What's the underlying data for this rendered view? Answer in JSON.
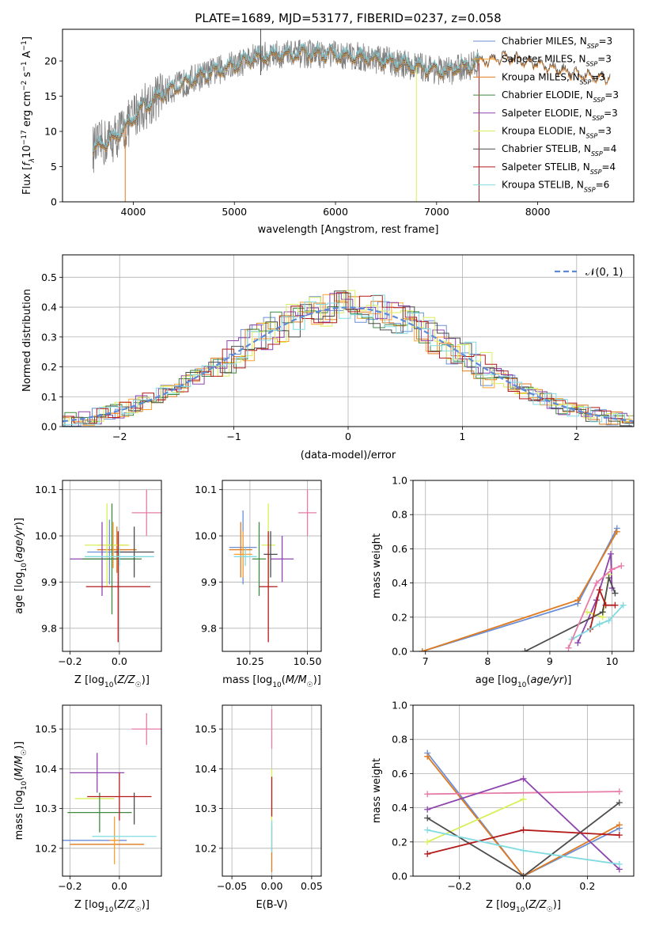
{
  "title": "PLATE=1689, MJD=53177, FIBERID=0237, z=0.058",
  "colors": {
    "Chabrier MILES": "#6a8fd6",
    "Salpeter MILES": "#ff9f2e",
    "Kroupa MILES": "#e07a1f",
    "Chabrier ELODIE": "#3f8a3f",
    "Salpeter ELODIE": "#8e44ad",
    "Kroupa ELODIE": "#d9ef5a",
    "Chabrier STELIB": "#4d4d4d",
    "Salpeter STELIB": "#b31b1b",
    "Kroupa STELIB": "#7fdbe0",
    "Extra": "#e77ca8"
  },
  "chart_data": [
    {
      "id": "spectrum",
      "type": "line",
      "xlabel": "wavelength [Angstrom, rest frame]",
      "ylabel": "Flux [fλ10⁻¹⁷ erg cm⁻² s⁻¹ A⁻¹]",
      "xlim": [
        3300,
        8950
      ],
      "ylim": [
        0,
        24.5
      ],
      "xticks": [
        4000,
        5000,
        6000,
        7000,
        8000
      ],
      "yticks": [
        0,
        5,
        10,
        15,
        20
      ],
      "legend_placement": "top-right",
      "legend": [
        {
          "name": "Chabrier MILES",
          "sup": "3"
        },
        {
          "name": "Salpeter MILES",
          "sup": "3"
        },
        {
          "name": "Kroupa MILES",
          "sup": "3"
        },
        {
          "name": "Chabrier ELODIE",
          "sup": "3"
        },
        {
          "name": "Salpeter ELODIE",
          "sup": "3"
        },
        {
          "name": "Kroupa ELODIE",
          "sup": "3"
        },
        {
          "name": "Chabrier STELIB",
          "sup": "4"
        },
        {
          "name": "Salpeter STELIB",
          "sup": "4"
        },
        {
          "name": "Kroupa STELIB",
          "sup": "6"
        }
      ],
      "legend_prefix": ", N",
      "legend_sub": "SSP",
      "continuum": [
        [
          3600,
          7.5
        ],
        [
          3800,
          9
        ],
        [
          3950,
          11
        ],
        [
          4050,
          13
        ],
        [
          4300,
          15.5
        ],
        [
          4600,
          17.5
        ],
        [
          4900,
          19
        ],
        [
          5200,
          20.5
        ],
        [
          5500,
          21
        ],
        [
          5900,
          21
        ],
        [
          6300,
          20.5
        ],
        [
          6700,
          19.5
        ],
        [
          7100,
          18.5
        ],
        [
          7500,
          20
        ],
        [
          7700,
          20.5
        ],
        [
          8000,
          19.5
        ],
        [
          8400,
          18
        ],
        [
          8700,
          17.5
        ]
      ]
    },
    {
      "id": "residuals",
      "type": "histogram",
      "xlabel": "(data-model)/error",
      "ylabel": "Normed distribution",
      "xlim": [
        -2.5,
        2.5
      ],
      "ylim": [
        0,
        0.575
      ],
      "xticks": [
        -2,
        -1,
        0,
        1,
        2
      ],
      "yticks": [
        0.0,
        0.1,
        0.2,
        0.3,
        0.4,
        0.5
      ],
      "grid": true,
      "legend_placement": "top-right",
      "reference_label": "𝒩(0, 1)",
      "reference_color": "#5b8ad6"
    },
    {
      "id": "age-vs-Z",
      "type": "errorbar",
      "xlabel": "Z [log10(Z/Z☉)]",
      "ylabel": "age  [log10(age/yr)]",
      "xlim": [
        -0.23,
        0.17
      ],
      "ylim": [
        9.75,
        10.12
      ],
      "xticks": [
        -0.2,
        0.0
      ],
      "yticks": [
        9.8,
        9.9,
        10.0,
        10.1
      ],
      "grid": true,
      "points": [
        {
          "series": "Chabrier MILES",
          "x": -0.04,
          "xe": 0.09,
          "y": 9.965,
          "ye": 0.07
        },
        {
          "series": "Kroupa MILES",
          "x": -0.01,
          "xe": 0.08,
          "y": 9.97,
          "ye": 0.05
        },
        {
          "series": "Salpeter MILES",
          "x": -0.025,
          "xe": 0.06,
          "y": 9.98,
          "ye": 0.05
        },
        {
          "series": "Kroupa ELODIE",
          "x": -0.05,
          "xe": 0.09,
          "y": 9.98,
          "ye": 0.09
        },
        {
          "series": "Salpeter ELODIE",
          "x": -0.07,
          "xe": 0.13,
          "y": 9.95,
          "ye": 0.08
        },
        {
          "series": "Chabrier ELODIE",
          "x": -0.03,
          "xe": 0.12,
          "y": 9.95,
          "ye": 0.12
        },
        {
          "series": "Chabrier STELIB",
          "x": 0.06,
          "xe": 0.08,
          "y": 9.965,
          "ye": 0.055
        },
        {
          "series": "Salpeter STELIB",
          "x": -0.005,
          "xe": 0.13,
          "y": 9.89,
          "ye": 0.12
        },
        {
          "series": "Kroupa STELIB",
          "x": 0.0,
          "xe": 0.14,
          "y": 9.955,
          "ye": 0.02
        },
        {
          "series": "Extra",
          "x": 0.11,
          "xe": 0.06,
          "y": 10.05,
          "ye": 0.05
        }
      ]
    },
    {
      "id": "age-vs-mass",
      "type": "errorbar",
      "xlabel": "mass [log10(M/M☉)]",
      "xlim": [
        10.13,
        10.56
      ],
      "ylim": [
        9.75,
        10.12
      ],
      "xticks": [
        10.25,
        10.5
      ],
      "yticks": [
        9.8,
        9.9,
        10.0,
        10.1
      ],
      "grid": true,
      "points": [
        {
          "series": "Chabrier MILES",
          "x": 10.22,
          "xe": 0.06,
          "y": 9.975,
          "ye": 0.08
        },
        {
          "series": "Kroupa MILES",
          "x": 10.21,
          "xe": 0.05,
          "y": 9.97,
          "ye": 0.06
        },
        {
          "series": "Salpeter MILES",
          "x": 10.22,
          "xe": 0.04,
          "y": 9.96,
          "ye": 0.05
        },
        {
          "series": "Kroupa ELODIE",
          "x": 10.33,
          "xe": 0.03,
          "y": 9.98,
          "ye": 0.09
        },
        {
          "series": "Salpeter ELODIE",
          "x": 10.39,
          "xe": 0.05,
          "y": 9.95,
          "ye": 0.05
        },
        {
          "series": "Chabrier ELODIE",
          "x": 10.29,
          "xe": 0.03,
          "y": 9.95,
          "ye": 0.08
        },
        {
          "series": "Chabrier STELIB",
          "x": 10.34,
          "xe": 0.03,
          "y": 9.96,
          "ye": 0.05
        },
        {
          "series": "Salpeter STELIB",
          "x": 10.33,
          "xe": 0.04,
          "y": 9.89,
          "ye": 0.12
        },
        {
          "series": "Kroupa STELIB",
          "x": 10.23,
          "xe": 0.05,
          "y": 9.955,
          "ye": 0.02
        },
        {
          "series": "Extra",
          "x": 10.5,
          "xe": 0.04,
          "y": 10.05,
          "ye": 0.05
        }
      ]
    },
    {
      "id": "weight-vs-age",
      "type": "line",
      "xlabel": "age  [log10(age/yr)]",
      "ylabel": "mass weight",
      "xlim": [
        6.8,
        10.35
      ],
      "ylim": [
        0.0,
        1.0
      ],
      "xticks": [
        7,
        8,
        9,
        10
      ],
      "yticks": [
        0.0,
        0.2,
        0.4,
        0.6,
        0.8,
        1.0
      ],
      "grid": true,
      "series": [
        {
          "name": "Chabrier MILES",
          "x": [
            6.95,
            9.45,
            10.08
          ],
          "y": [
            0.0,
            0.28,
            0.72
          ]
        },
        {
          "name": "Kroupa MILES",
          "x": [
            6.95,
            9.45,
            10.08
          ],
          "y": [
            0.0,
            0.3,
            0.7
          ]
        },
        {
          "name": "Salpeter ELODIE",
          "x": [
            9.45,
            9.75,
            9.98,
            10.0
          ],
          "y": [
            0.05,
            0.3,
            0.57,
            0.37
          ]
        },
        {
          "name": "Kroupa ELODIE",
          "x": [
            9.6,
            9.85,
            9.95
          ],
          "y": [
            0.23,
            0.2,
            0.45
          ]
        },
        {
          "name": "Chabrier STELIB",
          "x": [
            8.6,
            9.85,
            9.95,
            10.05
          ],
          "y": [
            0.0,
            0.23,
            0.43,
            0.34
          ]
        },
        {
          "name": "Salpeter STELIB",
          "x": [
            9.65,
            9.8,
            9.9,
            10.05
          ],
          "y": [
            0.13,
            0.36,
            0.27,
            0.27
          ]
        },
        {
          "name": "Kroupa STELIB",
          "x": [
            9.35,
            9.8,
            9.95,
            10.18
          ],
          "y": [
            0.07,
            0.16,
            0.18,
            0.27
          ]
        },
        {
          "name": "Extra",
          "x": [
            9.3,
            9.75,
            10.0,
            10.15
          ],
          "y": [
            0.02,
            0.4,
            0.48,
            0.5
          ]
        }
      ]
    },
    {
      "id": "mass-vs-Z",
      "type": "errorbar",
      "xlabel": "Z [log10(Z/Z☉)]",
      "ylabel": "mass [log10(M/M☉)]",
      "xlim": [
        -0.23,
        0.17
      ],
      "ylim": [
        10.13,
        10.56
      ],
      "xticks": [
        -0.2,
        0.0
      ],
      "yticks": [
        10.2,
        10.3,
        10.4,
        10.5
      ],
      "grid": true,
      "points": [
        {
          "series": "Chabrier MILES",
          "x": -0.1,
          "xe": 0.13,
          "y": 10.22,
          "ye": 0.0
        },
        {
          "series": "Kroupa MILES",
          "x": -0.05,
          "xe": 0.15,
          "y": 10.21,
          "ye": 0.0
        },
        {
          "series": "Salpeter MILES",
          "x": -0.02,
          "xe": 0.02,
          "y": 10.22,
          "ye": 0.06
        },
        {
          "series": "Kroupa ELODIE",
          "x": -0.1,
          "xe": 0.08,
          "y": 10.325,
          "ye": 0.0
        },
        {
          "series": "Salpeter ELODIE",
          "x": -0.09,
          "xe": 0.11,
          "y": 10.39,
          "ye": 0.05
        },
        {
          "series": "Chabrier ELODIE",
          "x": -0.08,
          "xe": 0.13,
          "y": 10.29,
          "ye": 0.05
        },
        {
          "series": "Chabrier STELIB",
          "x": 0.06,
          "xe": 0.0,
          "y": 10.3,
          "ye": 0.04
        },
        {
          "series": "Salpeter STELIB",
          "x": 0.0,
          "xe": 0.13,
          "y": 10.33,
          "ye": 0.06
        },
        {
          "series": "Kroupa STELIB",
          "x": 0.02,
          "xe": 0.13,
          "y": 10.23,
          "ye": 0.0
        },
        {
          "series": "Extra",
          "x": 0.11,
          "xe": 0.06,
          "y": 10.5,
          "ye": 0.04
        }
      ]
    },
    {
      "id": "mass-vs-EBV",
      "type": "errorbar",
      "xlabel": "E(B-V)",
      "xlim": [
        -0.062,
        0.062
      ],
      "ylim": [
        10.13,
        10.56
      ],
      "xticks": [
        -0.05,
        0.0,
        0.05
      ],
      "yticks": [
        10.2,
        10.3,
        10.4,
        10.5
      ],
      "grid": true,
      "points": [
        {
          "series": "Extra",
          "x": 0.0,
          "xe": 0.0,
          "y": 10.5,
          "ye": 0.05
        },
        {
          "series": "Kroupa ELODIE",
          "x": 0.0,
          "xe": 0.0,
          "y": 10.33,
          "ye": 0.07
        },
        {
          "series": "Salpeter STELIB",
          "x": 0.0,
          "xe": 0.0,
          "y": 10.33,
          "ye": 0.05
        },
        {
          "series": "Kroupa MILES",
          "x": 0.0,
          "xe": 0.0,
          "y": 10.2,
          "ye": 0.06
        },
        {
          "series": "Kroupa STELIB",
          "x": 0.0,
          "xe": 0.0,
          "y": 10.23,
          "ye": 0.04
        }
      ]
    },
    {
      "id": "weight-vs-Z",
      "type": "line",
      "xlabel": "Z [log10(Z/Z☉)]",
      "ylabel": "mass weight",
      "xlim": [
        -0.345,
        0.345
      ],
      "ylim": [
        0.0,
        1.0
      ],
      "xticks": [
        -0.2,
        0.0,
        0.2
      ],
      "yticks": [
        0.0,
        0.2,
        0.4,
        0.6,
        0.8,
        1.0
      ],
      "grid": true,
      "series": [
        {
          "name": "Chabrier MILES",
          "x": [
            -0.3,
            0.0,
            0.3
          ],
          "y": [
            0.72,
            0.0,
            0.28
          ]
        },
        {
          "name": "Kroupa MILES",
          "x": [
            -0.3,
            0.0,
            0.3
          ],
          "y": [
            0.7,
            0.0,
            0.3
          ]
        },
        {
          "name": "Extra",
          "x": [
            -0.3,
            0.3
          ],
          "y": [
            0.48,
            0.495
          ]
        },
        {
          "name": "Salpeter ELODIE",
          "x": [
            -0.3,
            0.0,
            0.3
          ],
          "y": [
            0.39,
            0.57,
            0.04
          ]
        },
        {
          "name": "Kroupa ELODIE",
          "x": [
            -0.3,
            0.0
          ],
          "y": [
            0.2,
            0.45
          ]
        },
        {
          "name": "Chabrier STELIB",
          "x": [
            -0.3,
            0.0,
            0.3
          ],
          "y": [
            0.34,
            0.0,
            0.43
          ]
        },
        {
          "name": "Salpeter STELIB",
          "x": [
            -0.3,
            0.0,
            0.3
          ],
          "y": [
            0.13,
            0.27,
            0.24
          ]
        },
        {
          "name": "Kroupa STELIB",
          "x": [
            -0.3,
            0.0,
            0.3
          ],
          "y": [
            0.27,
            0.15,
            0.07
          ]
        }
      ]
    }
  ]
}
